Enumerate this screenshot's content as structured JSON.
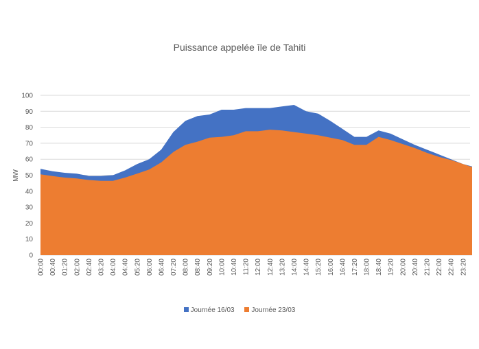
{
  "chart_data": {
    "type": "area",
    "title": "Puissance appelée île de Tahiti",
    "xlabel": "",
    "ylabel": "MW",
    "ylim": [
      0,
      100
    ],
    "yticks": [
      0,
      10,
      20,
      30,
      40,
      50,
      60,
      70,
      80,
      90,
      100
    ],
    "grid": true,
    "legend_position": "bottom",
    "x_tick_labels": [
      "00:00",
      "00:40",
      "01:20",
      "02:00",
      "02:40",
      "03:20",
      "04:00",
      "04:40",
      "05:20",
      "06:00",
      "06:40",
      "07:20",
      "08:00",
      "08:40",
      "09:20",
      "10:00",
      "10:40",
      "11:20",
      "12:00",
      "12:40",
      "13:20",
      "14:00",
      "14:40",
      "15:20",
      "16:00",
      "16:40",
      "17:20",
      "18:00",
      "18:40",
      "19:20",
      "20:00",
      "20:40",
      "21:20",
      "22:00",
      "22:40",
      "23:20"
    ],
    "x_minutes": [
      0,
      40,
      80,
      120,
      160,
      200,
      240,
      280,
      320,
      360,
      400,
      440,
      480,
      520,
      560,
      600,
      640,
      680,
      720,
      760,
      800,
      840,
      880,
      920,
      960,
      1000,
      1040,
      1080,
      1120,
      1160,
      1200,
      1240,
      1280,
      1320,
      1360,
      1400,
      1430
    ],
    "series": [
      {
        "name": "Journée 16/03",
        "color": "#4472C4",
        "values": [
          54,
          52.5,
          51.5,
          51,
          49.5,
          49.5,
          50,
          53,
          57,
          60,
          66,
          77,
          84,
          87,
          88,
          91,
          91,
          92,
          92,
          92,
          93,
          94,
          90,
          88.5,
          84,
          79,
          74,
          74,
          78,
          76,
          72.5,
          69,
          66,
          63,
          60,
          57,
          55.5
        ]
      },
      {
        "name": "Journée 23/03",
        "color": "#ED7D31",
        "values": [
          50.5,
          49.5,
          48.5,
          48,
          47,
          46.5,
          46.5,
          48.5,
          51,
          53.5,
          58,
          64.5,
          69,
          71,
          73.5,
          74,
          75,
          77.5,
          77.5,
          78.5,
          78,
          77,
          76,
          75,
          73.5,
          72,
          69,
          69,
          74,
          72,
          69.5,
          67,
          64,
          61.5,
          59.5,
          57,
          55
        ]
      }
    ]
  }
}
